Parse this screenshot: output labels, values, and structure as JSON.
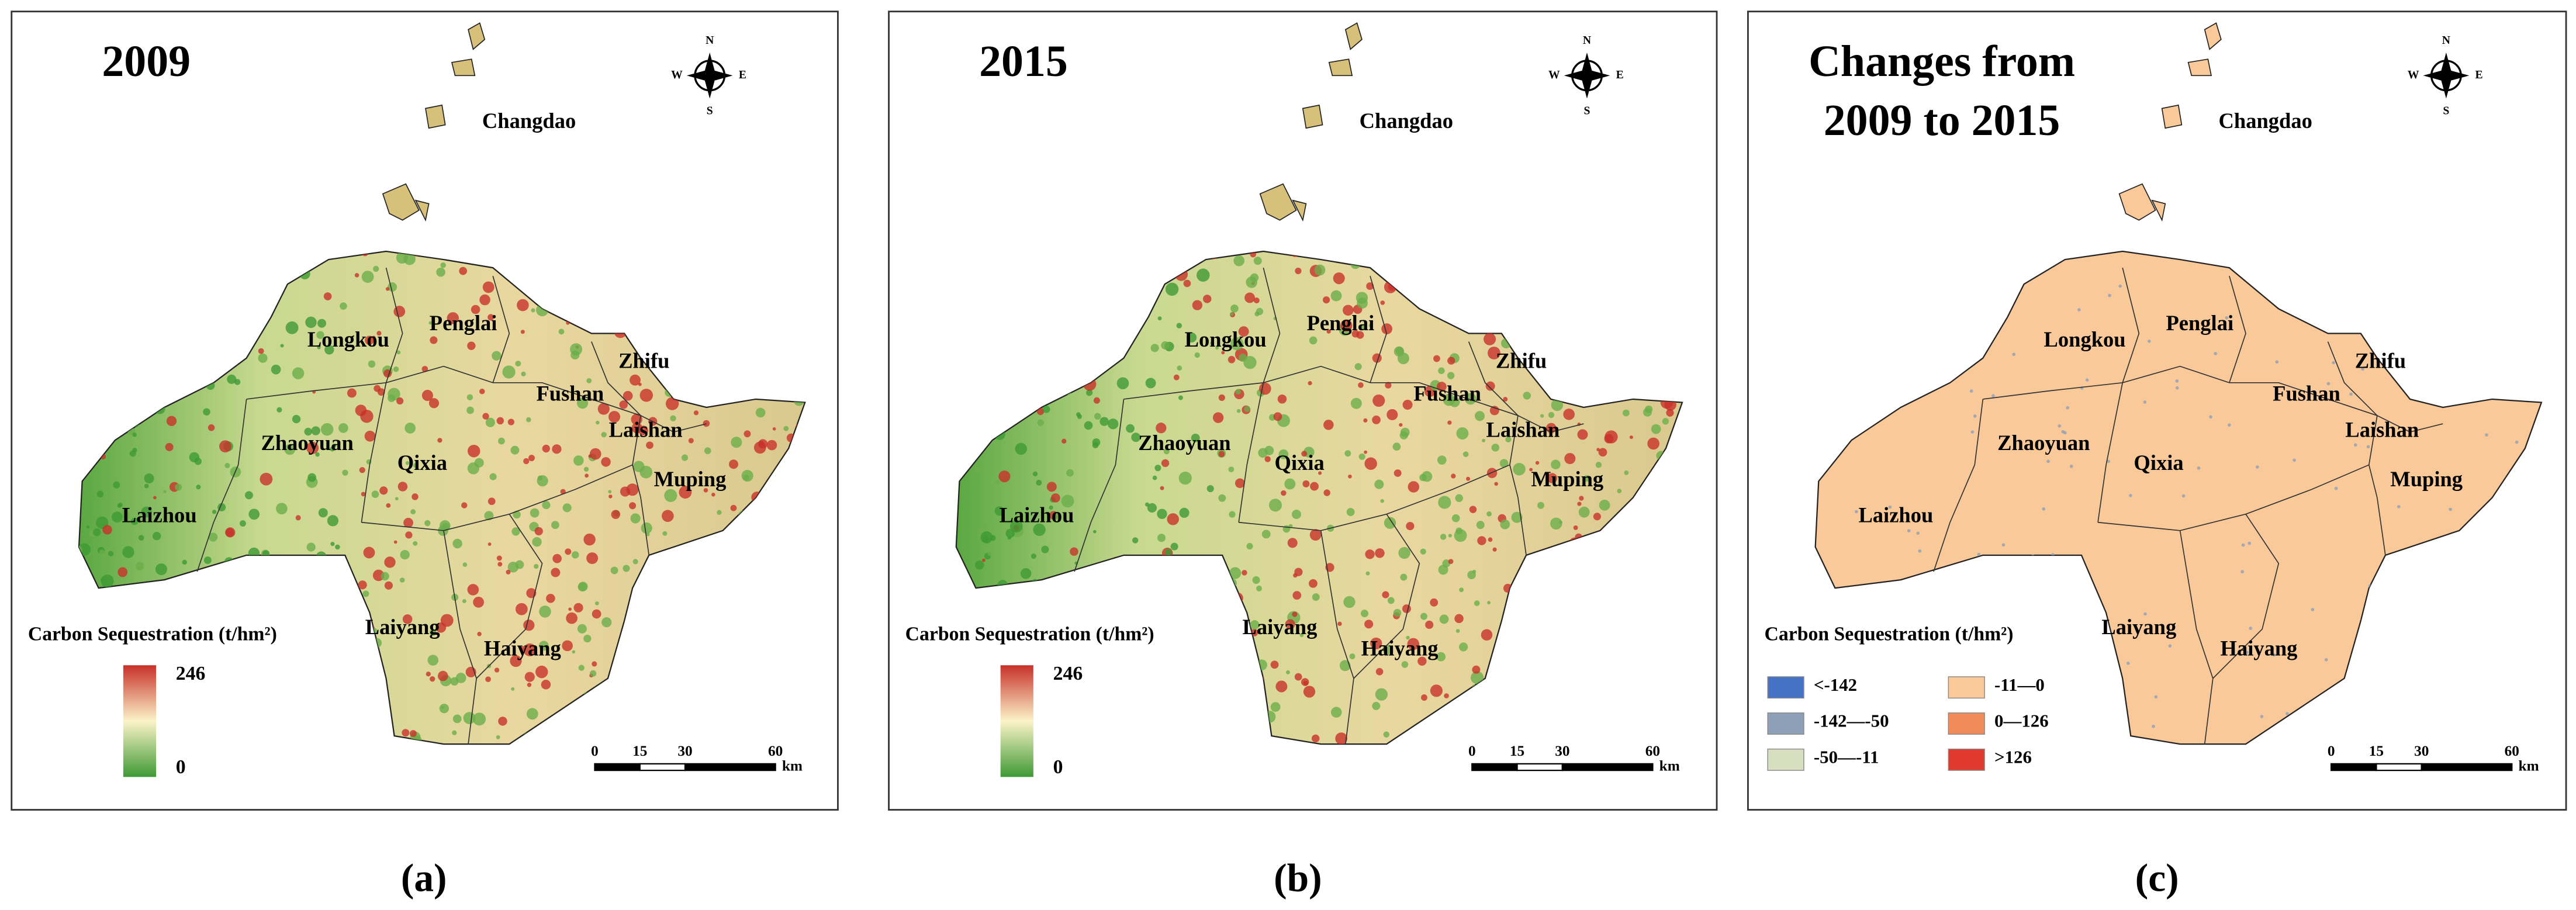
{
  "panels": [
    {
      "label": "(a)",
      "title": [
        "2009"
      ],
      "legend": {
        "title": "Carbon Sequestration (t/hm²)",
        "max": 246,
        "min": 0
      }
    },
    {
      "label": "(b)",
      "title": [
        "2015"
      ],
      "legend": {
        "title": "Carbon Sequestration (t/hm²)",
        "max": 246,
        "min": 0
      }
    },
    {
      "label": "(c)",
      "title": [
        "Changes from",
        "2009 to 2015"
      ],
      "legend": {
        "title": "Carbon Sequestration (t/hm²)",
        "classes": [
          {
            "label": "<-142",
            "color": "#4472c4"
          },
          {
            "label": "-142—-50",
            "color": "#8ea0b8"
          },
          {
            "label": "-50—-11",
            "color": "#d8dfc0"
          },
          {
            "label": "-11—0",
            "color": "#f9c999"
          },
          {
            "label": "0—126",
            "color": "#f28b5a"
          },
          {
            "label": ">126",
            "color": "#e03a2e"
          }
        ]
      }
    }
  ],
  "districts": [
    "Changdao",
    "Longkou",
    "Penglai",
    "Zhifu",
    "Fushan",
    "Laishan",
    "Zhaoyuan",
    "Qixia",
    "Muping",
    "Laizhou",
    "Laiyang",
    "Haiyang"
  ],
  "compass": [
    "N",
    "S",
    "W",
    "E"
  ],
  "scale": {
    "ticks": [
      0,
      15,
      30,
      60
    ],
    "unit": "km"
  }
}
